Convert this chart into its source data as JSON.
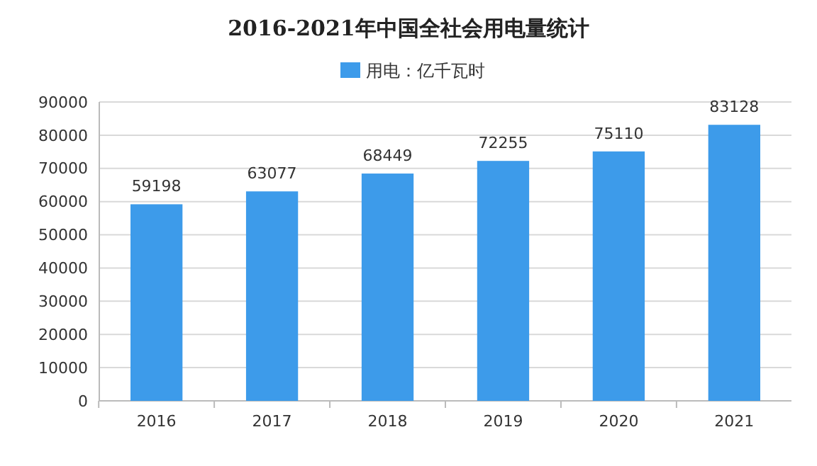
{
  "chart_data": {
    "type": "bar",
    "title": "2016-2021年中国全社会用电量统计",
    "categories": [
      "2016",
      "2017",
      "2018",
      "2019",
      "2020",
      "2021"
    ],
    "series": [
      {
        "name": "用电：亿千瓦时",
        "color": "#3d9bea",
        "values": [
          59198,
          63077,
          68449,
          72255,
          75110,
          83128
        ]
      }
    ],
    "ylim": [
      0,
      90000
    ],
    "yticks": [
      0,
      10000,
      20000,
      30000,
      40000,
      50000,
      60000,
      70000,
      80000,
      90000
    ],
    "grid": "y",
    "legend": "top",
    "data_labels": true
  }
}
